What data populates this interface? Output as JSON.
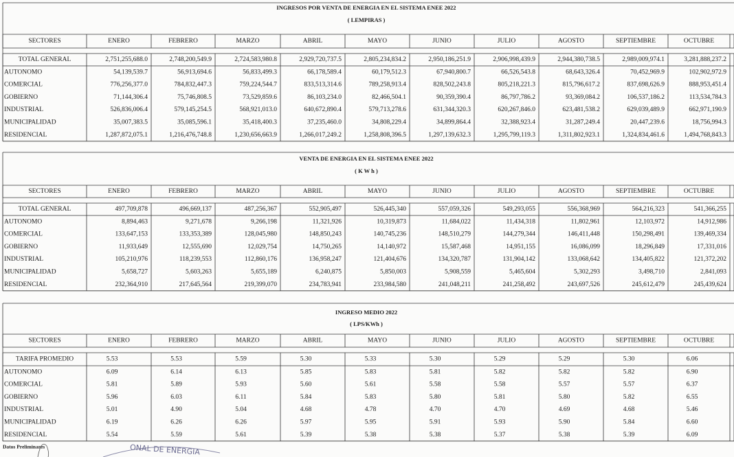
{
  "sections": [
    {
      "title": "INGRESOS POR VENTA DE ENERGIA EN EL SISTEMA ENEE 2022",
      "subtitle": "( LEMPIRAS )",
      "columns": [
        "SECTORES",
        "ENERO",
        "FEBRERO",
        "MARZO",
        "ABRIL",
        "MAYO",
        "JUNIO",
        "JULIO",
        "AGOSTO",
        "SEPTIEMBRE",
        "OCTUBRE"
      ],
      "rows": [
        {
          "label": "TOTAL GENERAL",
          "values": [
            "2,751,255,688.0",
            "2,748,200,549.9",
            "2,724,583,980.8",
            "2,929,720,737.5",
            "2,805,234,834.2",
            "2,950,186,251.9",
            "2,906,998,439.9",
            "2,944,380,738.5",
            "2,989,009,974.1",
            "3,281,888,237.2"
          ]
        },
        {
          "label": "AUTONOMO",
          "values": [
            "54,139,539.7",
            "56,913,694.6",
            "56,833,499.3",
            "66,178,589.4",
            "60,179,512.3",
            "67,940,800.7",
            "66,526,543.8",
            "68,643,326.4",
            "70,452,969.9",
            "102,902,972.9"
          ]
        },
        {
          "label": "COMERCIAL",
          "values": [
            "776,256,377.0",
            "784,832,447.3",
            "759,224,544.7",
            "833,513,314.6",
            "789,258,913.4",
            "828,502,243.8",
            "805,218,221.3",
            "815,796,617.2",
            "837,698,626.9",
            "888,953,451.4"
          ]
        },
        {
          "label": "GOBIERNO",
          "values": [
            "71,144,306.4",
            "75,746,808.5",
            "73,529,859.6",
            "86,103,234.0",
            "82,466,504.1",
            "90,359,390.4",
            "86,797,786.2",
            "93,369,084.2",
            "106,537,186.2",
            "113,534,784.3"
          ]
        },
        {
          "label": "INDUSTRIAL",
          "values": [
            "526,836,006.4",
            "579,145,254.5",
            "568,921,013.0",
            "640,672,890.4",
            "579,713,278.6",
            "631,344,320.3",
            "620,267,846.0",
            "623,481,538.2",
            "629,039,489.9",
            "662,971,190.9"
          ]
        },
        {
          "label": "MUNICIPALIDAD",
          "values": [
            "35,007,383.5",
            "35,085,596.1",
            "35,418,400.3",
            "37,235,460.0",
            "34,808,229.4",
            "34,899,864.4",
            "32,388,923.4",
            "31,287,249.4",
            "20,447,239.6",
            "18,756,994.3"
          ]
        },
        {
          "label": "RESIDENCIAL",
          "values": [
            "1,287,872,075.1",
            "1,216,476,748.8",
            "1,230,656,663.9",
            "1,266,017,249.2",
            "1,258,808,396.5",
            "1,297,139,632.3",
            "1,295,799,119.3",
            "1,311,802,923.1",
            "1,324,834,461.6",
            "1,494,768,843.3"
          ]
        }
      ]
    },
    {
      "title": "VENTA DE ENERGIA EN EL SISTEMA ENEE 2022",
      "subtitle": "( K W h )",
      "columns": [
        "SECTORES",
        "ENERO",
        "FEBRERO",
        "MARZO",
        "ABRIL",
        "MAYO",
        "JUNIO",
        "JULIO",
        "AGOSTO",
        "SEPTIEMBRE",
        "OCTUBRE"
      ],
      "rows": [
        {
          "label": "TOTAL GENERAL",
          "values": [
            "497,709,878",
            "496,669,137",
            "487,256,367",
            "552,905,497",
            "526,445,340",
            "557,059,326",
            "549,293,055",
            "556,368,969",
            "564,216,323",
            "541,366,255"
          ]
        },
        {
          "label": "AUTONOMO",
          "values": [
            "8,894,463",
            "9,271,678",
            "9,266,198",
            "11,321,926",
            "10,319,873",
            "11,684,022",
            "11,434,318",
            "11,802,961",
            "12,103,972",
            "14,912,986"
          ]
        },
        {
          "label": "COMERCIAL",
          "values": [
            "133,647,153",
            "133,353,389",
            "128,045,980",
            "148,850,243",
            "140,745,236",
            "148,510,279",
            "144,279,344",
            "146,411,448",
            "150,298,491",
            "139,469,334"
          ]
        },
        {
          "label": "GOBIERNO",
          "values": [
            "11,933,649",
            "12,555,690",
            "12,029,754",
            "14,750,265",
            "14,140,972",
            "15,587,468",
            "14,951,155",
            "16,086,099",
            "18,296,849",
            "17,331,016"
          ]
        },
        {
          "label": "INDUSTRIAL",
          "values": [
            "105,210,976",
            "118,239,553",
            "112,860,176",
            "136,958,247",
            "121,404,676",
            "134,320,787",
            "131,904,142",
            "133,068,642",
            "134,405,822",
            "121,372,202"
          ]
        },
        {
          "label": "MUNICIPALIDAD",
          "values": [
            "5,658,727",
            "5,603,263",
            "5,655,189",
            "6,240,875",
            "5,850,003",
            "5,908,559",
            "5,465,604",
            "5,302,293",
            "3,498,710",
            "2,841,093"
          ]
        },
        {
          "label": "RESIDENCIAL",
          "values": [
            "232,364,910",
            "217,645,564",
            "219,399,070",
            "234,783,941",
            "233,984,580",
            "241,048,211",
            "241,258,492",
            "243,697,526",
            "245,612,479",
            "245,439,624"
          ]
        }
      ]
    },
    {
      "title": "INGRESO MEDIO 2022",
      "subtitle": "( LPS/KWh )",
      "columns": [
        "SECTORES",
        "ENERO",
        "FEBRERO",
        "MARZO",
        "ABRIL",
        "MAYO",
        "JUNIO",
        "JULIO",
        "AGOSTO",
        "SEPTIEMBRE",
        "OCTUBRE"
      ],
      "rows": [
        {
          "label": "TARIFA PROMEDIO",
          "values": [
            "5.53",
            "5.53",
            "5.59",
            "5.30",
            "5.33",
            "5.30",
            "5.29",
            "5.29",
            "5.30",
            "6.06"
          ]
        },
        {
          "label": "AUTONOMO",
          "values": [
            "6.09",
            "6.14",
            "6.13",
            "5.85",
            "5.83",
            "5.81",
            "5.82",
            "5.82",
            "5.82",
            "6.90"
          ]
        },
        {
          "label": "COMERCIAL",
          "values": [
            "5.81",
            "5.89",
            "5.93",
            "5.60",
            "5.61",
            "5.58",
            "5.58",
            "5.57",
            "5.57",
            "6.37"
          ]
        },
        {
          "label": "GOBIERNO",
          "values": [
            "5.96",
            "6.03",
            "6.11",
            "5.84",
            "5.83",
            "5.80",
            "5.81",
            "5.80",
            "5.82",
            "6.55"
          ]
        },
        {
          "label": "INDUSTRIAL",
          "values": [
            "5.01",
            "4.90",
            "5.04",
            "4.68",
            "4.78",
            "4.70",
            "4.70",
            "4.69",
            "4.68",
            "5.46"
          ]
        },
        {
          "label": "MUNICIPALIDAD",
          "values": [
            "6.19",
            "6.26",
            "6.26",
            "5.97",
            "5.95",
            "5.91",
            "5.93",
            "5.90",
            "5.84",
            "6.60"
          ]
        },
        {
          "label": "RESIDENCIAL",
          "values": [
            "5.54",
            "5.59",
            "5.61",
            "5.39",
            "5.38",
            "5.38",
            "5.37",
            "5.38",
            "5.39",
            "6.09"
          ]
        }
      ]
    }
  ],
  "footer": {
    "note": "Datos Preliminares",
    "stamp": "ONAL DE ENERGIA"
  }
}
